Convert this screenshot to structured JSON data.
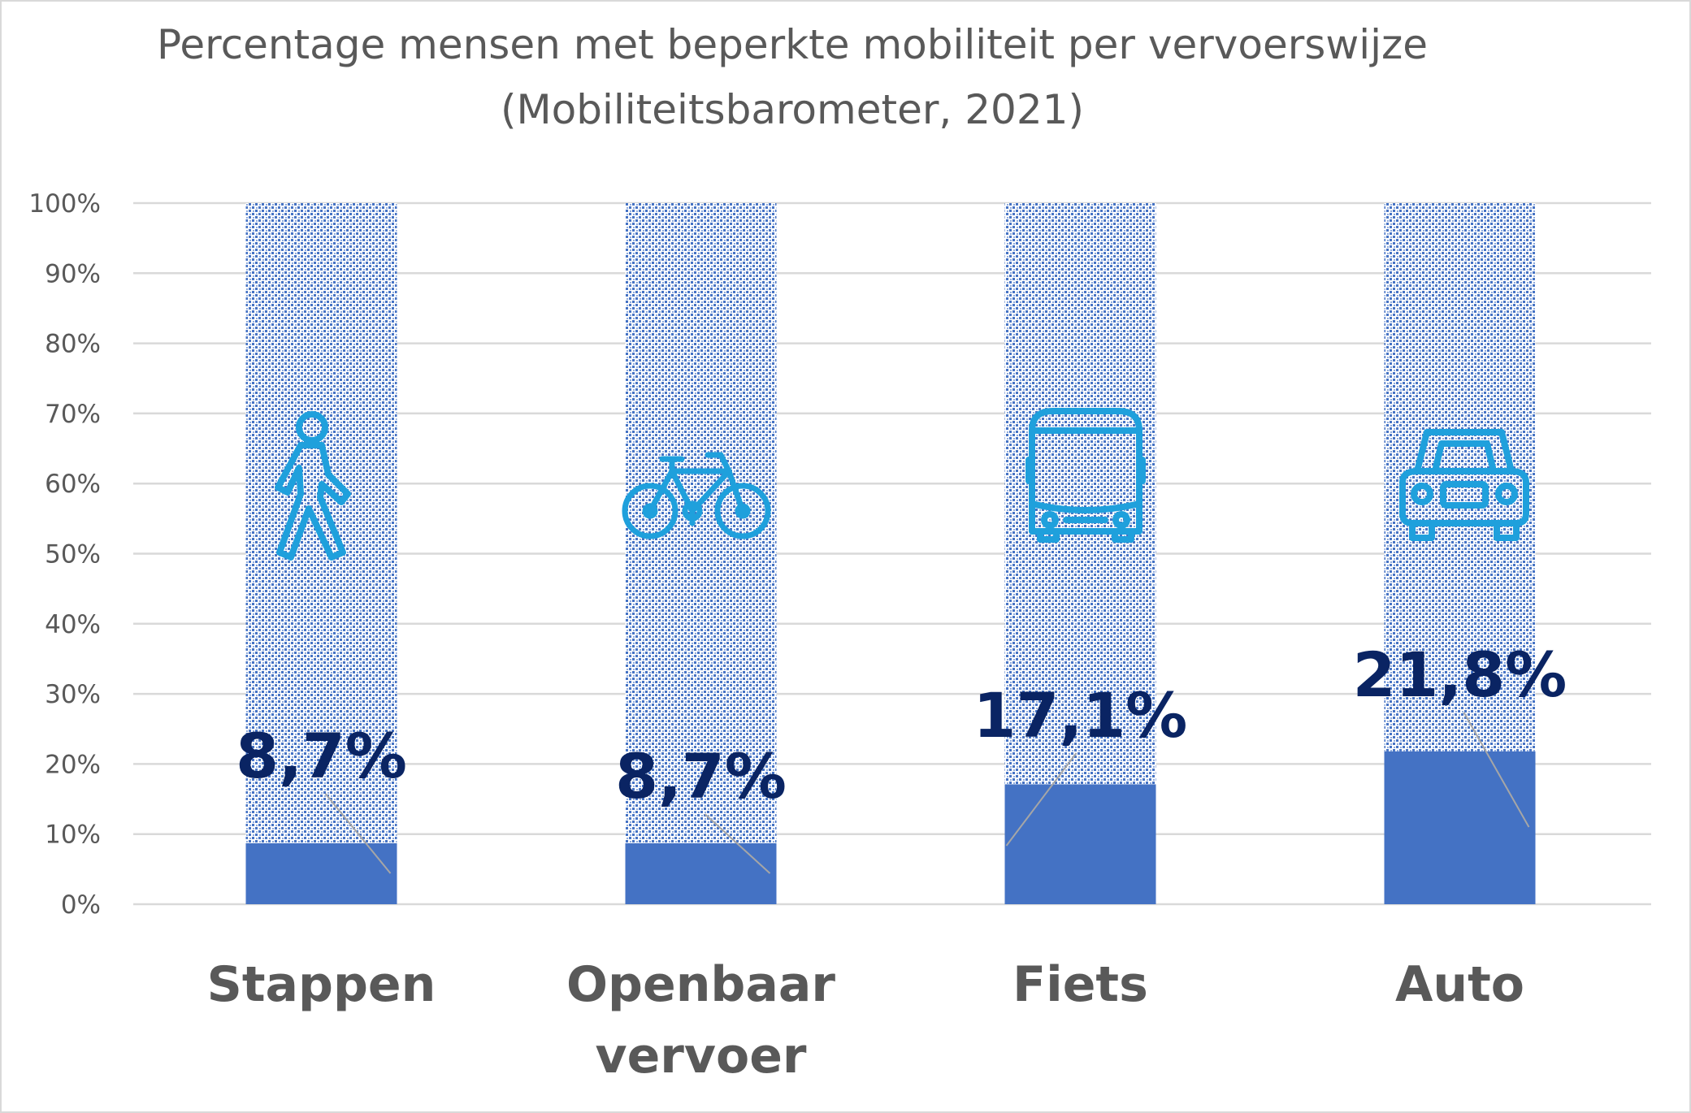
{
  "chart_data": {
    "type": "bar",
    "stacked": true,
    "title": "Percentage mensen met beperkte mobiliteit per vervoerswijze",
    "subtitle": "(Mobiliteitsbarometer, 2021)",
    "categories": [
      [
        "Stappen"
      ],
      [
        "Openbaar",
        "vervoer"
      ],
      [
        "Fiets"
      ],
      [
        "Auto"
      ]
    ],
    "values": [
      8.7,
      8.7,
      17.1,
      21.8
    ],
    "data_labels": [
      "8,7%",
      "8,7%",
      "17,1%",
      "21,8%"
    ],
    "total": 100,
    "ylim": [
      0,
      100
    ],
    "yticks": [
      "0%",
      "10%",
      "20%",
      "30%",
      "40%",
      "50%",
      "60%",
      "70%",
      "80%",
      "90%",
      "100%"
    ],
    "grid": true,
    "legend": "none",
    "icons": [
      "pedestrian-icon",
      "bicycle-icon",
      "bus-icon",
      "car-icon"
    ],
    "colors": {
      "filled": "#4472c4",
      "remainder_pattern": "#4472c4",
      "icon": "#1fa0dc",
      "label": "#0a2463",
      "grid": "#d9d9d9",
      "text": "#595959"
    }
  }
}
